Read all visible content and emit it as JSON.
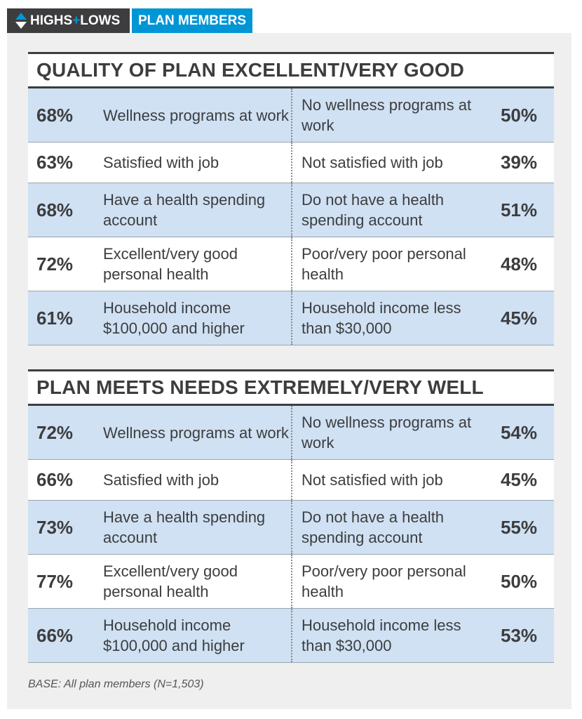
{
  "header": {
    "brand_left": "HIGHS",
    "brand_plus": "+",
    "brand_right": "LOWS",
    "section": "PLAN MEMBERS"
  },
  "colors": {
    "dark": "#3d3d3f",
    "accent": "#0096d6",
    "row_blue": "#cfe1f3",
    "panel": "#efefef"
  },
  "chart_data": [
    {
      "type": "table",
      "title": "QUALITY OF PLAN EXCELLENT/VERY GOOD",
      "rows": [
        {
          "left_value": "68%",
          "left_label": "Wellness programs at work",
          "right_label": "No wellness programs at work",
          "right_value": "50%"
        },
        {
          "left_value": "63%",
          "left_label": "Satisfied with job",
          "right_label": "Not satisfied with job",
          "right_value": "39%"
        },
        {
          "left_value": "68%",
          "left_label": "Have a health spending account",
          "right_label": "Do not have a health spending account",
          "right_value": "51%"
        },
        {
          "left_value": "72%",
          "left_label": "Excellent/very good personal health",
          "right_label": "Poor/very poor personal health",
          "right_value": "48%"
        },
        {
          "left_value": "61%",
          "left_label": "Household income $100,000 and higher",
          "right_label": "Household income less than $30,000",
          "right_value": "45%"
        }
      ]
    },
    {
      "type": "table",
      "title": "PLAN MEETS NEEDS EXTREMELY/VERY WELL",
      "rows": [
        {
          "left_value": "72%",
          "left_label": "Wellness programs at work",
          "right_label": "No wellness programs at work",
          "right_value": "54%"
        },
        {
          "left_value": "66%",
          "left_label": "Satisfied with job",
          "right_label": "Not satisfied with job",
          "right_value": "45%"
        },
        {
          "left_value": "73%",
          "left_label": "Have a health spending account",
          "right_label": "Do not have a health spending account",
          "right_value": "55%"
        },
        {
          "left_value": "77%",
          "left_label": "Excellent/very good personal health",
          "right_label": "Poor/very poor personal health",
          "right_value": "50%"
        },
        {
          "left_value": "66%",
          "left_label": "Household income $100,000 and higher",
          "right_label": "Household income less than $30,000",
          "right_value": "53%"
        }
      ]
    }
  ],
  "footnote": "BASE: All plan members (N=1,503)"
}
